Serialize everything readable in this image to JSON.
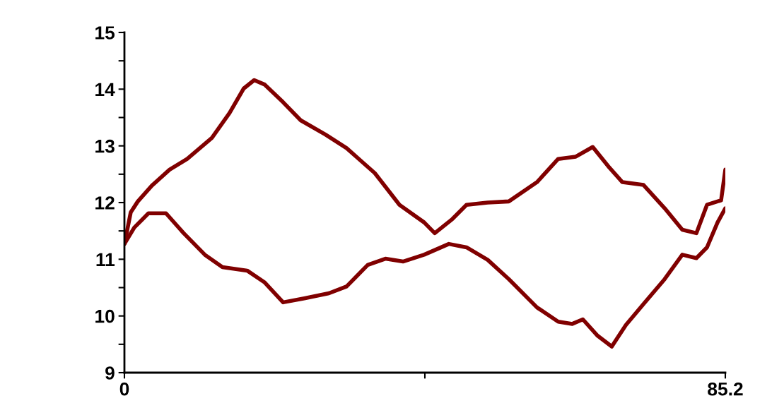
{
  "chart_data": {
    "type": "line",
    "xlim": [
      0,
      85.2
    ],
    "ylim": [
      9,
      15
    ],
    "xticks": [
      0,
      {
        "value": 42.6,
        "label": null
      },
      85.2
    ],
    "yticks": [
      9,
      {
        "value": 9.5,
        "label": null
      },
      10,
      {
        "value": 10.5,
        "label": null
      },
      11,
      {
        "value": 11.5,
        "label": null
      },
      12,
      {
        "value": 12.5,
        "label": null
      },
      13,
      {
        "value": 13.5,
        "label": null
      },
      14,
      {
        "value": 14.5,
        "label": null
      },
      15
    ],
    "grid": false,
    "marker": "none",
    "line_style": "solid",
    "series": [
      {
        "color": "#800000",
        "x": [
          0,
          0.9,
          1.9,
          3.9,
          6.4,
          8.9,
          12.4,
          14.9,
          16.9,
          18.4,
          19.9,
          22.5,
          25.0,
          28.5,
          31.5,
          35.5,
          39.0,
          42.5,
          44.0,
          46.5,
          48.5,
          51.5,
          54.5,
          58.5,
          61.5,
          64.0,
          66.4,
          68.6,
          70.6,
          73.6,
          76.6,
          79.1,
          81.1,
          82.6,
          84.6,
          85.2
        ],
        "values": [
          11.27,
          11.83,
          12.02,
          12.3,
          12.58,
          12.77,
          13.14,
          13.58,
          14.01,
          14.16,
          14.08,
          13.77,
          13.45,
          13.2,
          12.96,
          12.52,
          11.96,
          11.65,
          11.46,
          11.71,
          11.96,
          12.0,
          12.02,
          12.36,
          12.77,
          12.81,
          12.98,
          12.64,
          12.36,
          12.31,
          11.9,
          11.52,
          11.46,
          11.96,
          12.04,
          12.58
        ]
      },
      {
        "color": "#800000",
        "x": [
          0,
          1.4,
          3.4,
          5.9,
          8.4,
          11.4,
          13.9,
          17.4,
          19.9,
          22.5,
          25.5,
          29.0,
          31.5,
          34.5,
          37.0,
          39.5,
          42.5,
          46.0,
          48.5,
          51.5,
          54.5,
          58.5,
          61.5,
          63.5,
          65.0,
          67.1,
          69.1,
          71.1,
          73.6,
          76.6,
          79.1,
          81.1,
          82.6,
          84.1,
          85.2
        ],
        "values": [
          11.27,
          11.56,
          11.81,
          11.81,
          11.46,
          11.08,
          10.86,
          10.8,
          10.59,
          10.24,
          10.31,
          10.4,
          10.52,
          10.9,
          11.01,
          10.96,
          11.08,
          11.27,
          11.21,
          10.99,
          10.65,
          10.15,
          9.9,
          9.86,
          9.94,
          9.65,
          9.46,
          9.84,
          10.21,
          10.65,
          11.08,
          11.02,
          11.21,
          11.65,
          11.9
        ]
      }
    ]
  }
}
